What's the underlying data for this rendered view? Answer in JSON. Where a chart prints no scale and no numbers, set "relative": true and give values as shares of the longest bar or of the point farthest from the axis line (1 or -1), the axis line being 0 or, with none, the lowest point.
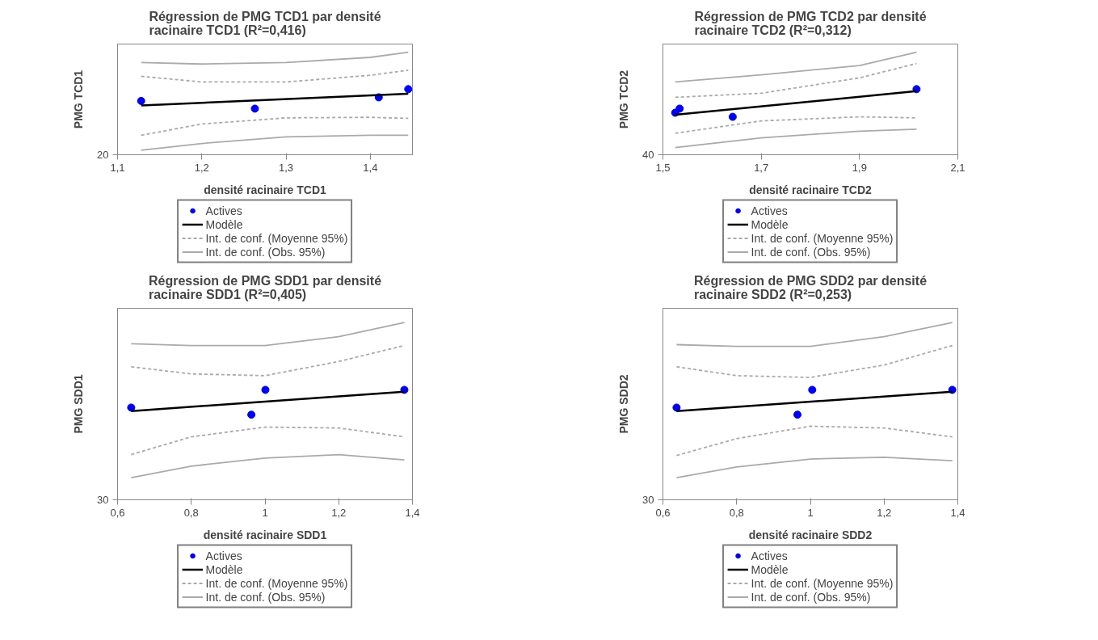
{
  "chart_data": [
    {
      "type": "line",
      "relative": true,
      "title": "Régression de PMG TCD1 par densité racinaire TCD1 (R²=0,416)",
      "xlabel": "densité racinaire TCD1",
      "ylabel": "PMG TCD1",
      "xlim": [
        1.1,
        1.45
      ],
      "xticks": [
        {
          "value": 1.1,
          "label": "1,1"
        },
        {
          "value": 1.2,
          "label": "1,2"
        },
        {
          "value": 1.3,
          "label": "1,3"
        },
        {
          "value": 1.4,
          "label": "1,4"
        }
      ],
      "annotations": [
        "20"
      ],
      "grid": false,
      "legend": "bottom",
      "series": [
        {
          "name": "Actives",
          "type": "scatter",
          "marker": "circle",
          "color": "#0000ff",
          "x": [
            1.128,
            1.263,
            1.41,
            1.445
          ],
          "values": [
            0.525,
            0.45,
            0.56,
            0.64
          ]
        },
        {
          "name": "Modèle",
          "line_style": "solid",
          "color": "#000000",
          "x": [
            1.128,
            1.445
          ],
          "values": [
            0.48,
            0.595
          ]
        },
        {
          "name": "Int. de conf. (Moyenne 95%)",
          "line_style": "dashed",
          "color": "#aaaaaa",
          "x": [
            1.128,
            1.2,
            1.3,
            1.4,
            1.445
          ],
          "values": [
            0.765,
            0.71,
            0.71,
            0.775,
            0.825
          ]
        },
        {
          "line_style": "dashed",
          "color": "#aaaaaa",
          "x": [
            1.128,
            1.2,
            1.3,
            1.4,
            1.445
          ],
          "values": [
            0.19,
            0.3,
            0.36,
            0.365,
            0.355
          ]
        },
        {
          "name": "Int. de conf. (Obs. 95%)",
          "line_style": "solid",
          "color": "#aaaaaa",
          "x": [
            1.128,
            1.2,
            1.3,
            1.4,
            1.445
          ],
          "values": [
            0.9,
            0.885,
            0.9,
            0.95,
            1.0
          ]
        },
        {
          "line_style": "solid",
          "color": "#aaaaaa",
          "x": [
            1.128,
            1.2,
            1.3,
            1.4,
            1.445
          ],
          "values": [
            0.045,
            0.11,
            0.175,
            0.19,
            0.19
          ]
        }
      ]
    },
    {
      "type": "line",
      "relative": true,
      "title": "Régression de PMG TCD2 par densité racinaire TCD2 (R²=0,312)",
      "xlabel": "densité racinaire TCD2",
      "ylabel": "PMG TCD2",
      "xlim": [
        1.5,
        2.1
      ],
      "xticks": [
        {
          "value": 1.5,
          "label": "1,5"
        },
        {
          "value": 1.7,
          "label": "1,7"
        },
        {
          "value": 1.9,
          "label": "1,9"
        },
        {
          "value": 2.1,
          "label": "2,1"
        }
      ],
      "annotations": [
        "40"
      ],
      "grid": false,
      "legend": "bottom",
      "series": [
        {
          "name": "Actives",
          "type": "scatter",
          "marker": "circle",
          "color": "#0000ff",
          "x": [
            1.525,
            1.534,
            1.642,
            2.016
          ],
          "values": [
            0.41,
            0.45,
            0.37,
            0.64
          ]
        },
        {
          "name": "Modèle",
          "line_style": "solid",
          "color": "#000000",
          "x": [
            1.525,
            2.016
          ],
          "values": [
            0.39,
            0.62
          ]
        },
        {
          "name": "Int. de conf. (Moyenne 95%)",
          "line_style": "dashed",
          "color": "#aaaaaa",
          "x": [
            1.525,
            1.7,
            1.9,
            2.016
          ],
          "values": [
            0.56,
            0.6,
            0.75,
            0.89
          ]
        },
        {
          "line_style": "dashed",
          "color": "#aaaaaa",
          "x": [
            1.525,
            1.7,
            1.9,
            2.016
          ],
          "values": [
            0.21,
            0.33,
            0.37,
            0.36
          ]
        },
        {
          "name": "Int. de conf. (Obs. 95%)",
          "line_style": "solid",
          "color": "#aaaaaa",
          "x": [
            1.525,
            1.7,
            1.9,
            2.016
          ],
          "values": [
            0.71,
            0.78,
            0.87,
            1.0
          ]
        },
        {
          "line_style": "solid",
          "color": "#aaaaaa",
          "x": [
            1.525,
            1.7,
            1.9,
            2.016
          ],
          "values": [
            0.07,
            0.165,
            0.23,
            0.25
          ]
        }
      ]
    },
    {
      "type": "line",
      "relative": true,
      "title": "Régression de PMG SDD1 par densité racinaire SDD1 (R²=0,405)",
      "xlabel": "densité racinaire SDD1",
      "ylabel": "PMG SDD1",
      "xlim": [
        0.6,
        1.4
      ],
      "xticks": [
        {
          "value": 0.6,
          "label": "0,6"
        },
        {
          "value": 0.8,
          "label": "0,8"
        },
        {
          "value": 1,
          "label": "1"
        },
        {
          "value": 1.2,
          "label": "1,2"
        },
        {
          "value": 1.4,
          "label": "1,4"
        }
      ],
      "annotations": [
        "30"
      ],
      "grid": false,
      "legend": "bottom",
      "series": [
        {
          "name": "Actives",
          "type": "scatter",
          "marker": "circle",
          "color": "#0000ff",
          "x": [
            0.637,
            0.963,
            1.001,
            1.378
          ],
          "values": [
            0.52,
            0.48,
            0.62,
            0.62
          ]
        },
        {
          "name": "Modèle",
          "line_style": "solid",
          "color": "#000000",
          "x": [
            0.637,
            1.378
          ],
          "values": [
            0.5,
            0.61
          ]
        },
        {
          "name": "Int. de conf. (Moyenne 95%)",
          "line_style": "dashed",
          "color": "#aaaaaa",
          "x": [
            0.637,
            0.8,
            1.0,
            1.2,
            1.378
          ],
          "values": [
            0.75,
            0.71,
            0.7,
            0.78,
            0.87
          ]
        },
        {
          "line_style": "dashed",
          "color": "#aaaaaa",
          "x": [
            0.637,
            0.8,
            1.0,
            1.2,
            1.378
          ],
          "values": [
            0.255,
            0.355,
            0.41,
            0.405,
            0.355
          ]
        },
        {
          "name": "Int. de conf. (Obs. 95%)",
          "line_style": "solid",
          "color": "#aaaaaa",
          "x": [
            0.637,
            0.8,
            1.0,
            1.2,
            1.378
          ],
          "values": [
            0.88,
            0.87,
            0.87,
            0.92,
            1.0
          ]
        },
        {
          "line_style": "solid",
          "color": "#aaaaaa",
          "x": [
            0.637,
            0.8,
            1.0,
            1.2,
            1.378
          ],
          "values": [
            0.125,
            0.19,
            0.235,
            0.255,
            0.225
          ]
        }
      ]
    },
    {
      "type": "line",
      "relative": true,
      "title": "Régression de PMG SDD2 par densité racinaire SDD2 (R²=0,253)",
      "xlabel": "densité racinaire SDD2",
      "ylabel": "PMG SDD2",
      "xlim": [
        0.6,
        1.4
      ],
      "xticks": [
        {
          "value": 0.6,
          "label": "0,6"
        },
        {
          "value": 0.8,
          "label": "0,8"
        },
        {
          "value": 1,
          "label": "1"
        },
        {
          "value": 1.2,
          "label": "1,2"
        },
        {
          "value": 1.4,
          "label": "1,4"
        }
      ],
      "annotations": [
        "30"
      ],
      "grid": false,
      "legend": "bottom",
      "series": [
        {
          "name": "Actives",
          "type": "scatter",
          "marker": "circle",
          "color": "#0000ff",
          "x": [
            0.637,
            0.965,
            1.005,
            1.385
          ],
          "values": [
            0.52,
            0.48,
            0.62,
            0.62
          ]
        },
        {
          "name": "Modèle",
          "line_style": "solid",
          "color": "#000000",
          "x": [
            0.637,
            1.385
          ],
          "values": [
            0.5,
            0.61
          ]
        },
        {
          "name": "Int. de conf. (Moyenne 95%)",
          "line_style": "dashed",
          "color": "#aaaaaa",
          "x": [
            0.637,
            0.8,
            1.0,
            1.2,
            1.385
          ],
          "values": [
            0.75,
            0.7,
            0.69,
            0.76,
            0.87
          ]
        },
        {
          "line_style": "dashed",
          "color": "#aaaaaa",
          "x": [
            0.637,
            0.8,
            1.0,
            1.2,
            1.385
          ],
          "values": [
            0.25,
            0.345,
            0.415,
            0.405,
            0.355
          ]
        },
        {
          "name": "Int. de conf. (Obs. 95%)",
          "line_style": "solid",
          "color": "#aaaaaa",
          "x": [
            0.637,
            0.8,
            1.0,
            1.2,
            1.385
          ],
          "values": [
            0.875,
            0.865,
            0.865,
            0.92,
            1.0
          ]
        },
        {
          "line_style": "solid",
          "color": "#aaaaaa",
          "x": [
            0.637,
            0.8,
            1.0,
            1.2,
            1.385
          ],
          "values": [
            0.125,
            0.185,
            0.23,
            0.24,
            0.22
          ]
        }
      ]
    }
  ]
}
